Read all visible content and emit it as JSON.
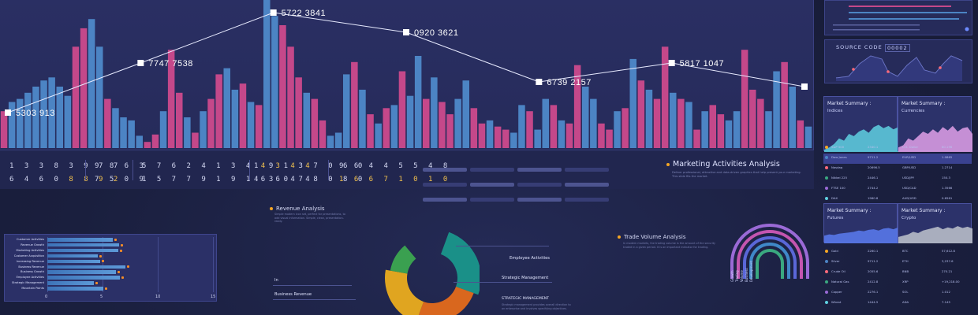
{
  "main_chart": {
    "bar_colors": {
      "blue": "#4c84c4",
      "pink": "#c4488a"
    },
    "bars": [
      {
        "v": 60,
        "c": "pink"
      },
      {
        "v": 75,
        "c": "blue"
      },
      {
        "v": 80,
        "c": "blue"
      },
      {
        "v": 90,
        "c": "blue"
      },
      {
        "v": 100,
        "c": "blue"
      },
      {
        "v": 110,
        "c": "blue"
      },
      {
        "v": 115,
        "c": "blue"
      },
      {
        "v": 100,
        "c": "blue"
      },
      {
        "v": 85,
        "c": "blue"
      },
      {
        "v": 165,
        "c": "pink"
      },
      {
        "v": 195,
        "c": "pink"
      },
      {
        "v": 210,
        "c": "blue"
      },
      {
        "v": 165,
        "c": "blue"
      },
      {
        "v": 80,
        "c": "pink"
      },
      {
        "v": 65,
        "c": "blue"
      },
      {
        "v": 50,
        "c": "blue"
      },
      {
        "v": 45,
        "c": "blue"
      },
      {
        "v": 20,
        "c": "blue"
      },
      {
        "v": 10,
        "c": "pink"
      },
      {
        "v": 22,
        "c": "pink"
      },
      {
        "v": 60,
        "c": "blue"
      },
      {
        "v": 160,
        "c": "pink"
      },
      {
        "v": 90,
        "c": "pink"
      },
      {
        "v": 50,
        "c": "blue"
      },
      {
        "v": 25,
        "c": "pink"
      },
      {
        "v": 60,
        "c": "blue"
      },
      {
        "v": 80,
        "c": "pink"
      },
      {
        "v": 120,
        "c": "pink"
      },
      {
        "v": 130,
        "c": "blue"
      },
      {
        "v": 95,
        "c": "blue"
      },
      {
        "v": 105,
        "c": "pink"
      },
      {
        "v": 75,
        "c": "blue"
      },
      {
        "v": 70,
        "c": "pink"
      },
      {
        "v": 245,
        "c": "blue"
      },
      {
        "v": 215,
        "c": "blue"
      },
      {
        "v": 200,
        "c": "pink"
      },
      {
        "v": 165,
        "c": "pink"
      },
      {
        "v": 115,
        "c": "pink"
      },
      {
        "v": 90,
        "c": "blue"
      },
      {
        "v": 80,
        "c": "pink"
      },
      {
        "v": 45,
        "c": "pink"
      },
      {
        "v": 20,
        "c": "blue"
      },
      {
        "v": 25,
        "c": "blue"
      },
      {
        "v": 120,
        "c": "blue"
      },
      {
        "v": 140,
        "c": "pink"
      },
      {
        "v": 95,
        "c": "blue"
      },
      {
        "v": 55,
        "c": "pink"
      },
      {
        "v": 40,
        "c": "blue"
      },
      {
        "v": 65,
        "c": "pink"
      },
      {
        "v": 70,
        "c": "blue"
      },
      {
        "v": 125,
        "c": "pink"
      },
      {
        "v": 85,
        "c": "blue"
      },
      {
        "v": 150,
        "c": "blue"
      },
      {
        "v": 80,
        "c": "pink"
      },
      {
        "v": 115,
        "c": "blue"
      },
      {
        "v": 75,
        "c": "pink"
      },
      {
        "v": 55,
        "c": "pink"
      },
      {
        "v": 80,
        "c": "blue"
      },
      {
        "v": 110,
        "c": "blue"
      },
      {
        "v": 65,
        "c": "pink"
      },
      {
        "v": 40,
        "c": "pink"
      },
      {
        "v": 45,
        "c": "blue"
      },
      {
        "v": 35,
        "c": "pink"
      },
      {
        "v": 30,
        "c": "pink"
      },
      {
        "v": 25,
        "c": "blue"
      },
      {
        "v": 70,
        "c": "blue"
      },
      {
        "v": 60,
        "c": "pink"
      },
      {
        "v": 30,
        "c": "blue"
      },
      {
        "v": 80,
        "c": "blue"
      },
      {
        "v": 70,
        "c": "pink"
      },
      {
        "v": 45,
        "c": "blue"
      },
      {
        "v": 40,
        "c": "pink"
      },
      {
        "v": 135,
        "c": "pink"
      },
      {
        "v": 100,
        "c": "blue"
      },
      {
        "v": 80,
        "c": "blue"
      },
      {
        "v": 40,
        "c": "pink"
      },
      {
        "v": 30,
        "c": "pink"
      },
      {
        "v": 60,
        "c": "blue"
      },
      {
        "v": 65,
        "c": "pink"
      },
      {
        "v": 145,
        "c": "blue"
      },
      {
        "v": 110,
        "c": "pink"
      },
      {
        "v": 95,
        "c": "blue"
      },
      {
        "v": 80,
        "c": "pink"
      },
      {
        "v": 165,
        "c": "pink"
      },
      {
        "v": 90,
        "c": "blue"
      },
      {
        "v": 80,
        "c": "pink"
      },
      {
        "v": 75,
        "c": "blue"
      },
      {
        "v": 30,
        "c": "pink"
      },
      {
        "v": 60,
        "c": "blue"
      },
      {
        "v": 70,
        "c": "pink"
      },
      {
        "v": 55,
        "c": "pink"
      },
      {
        "v": 45,
        "c": "blue"
      },
      {
        "v": 60,
        "c": "blue"
      },
      {
        "v": 160,
        "c": "pink"
      },
      {
        "v": 95,
        "c": "pink"
      },
      {
        "v": 80,
        "c": "pink"
      },
      {
        "v": 60,
        "c": "blue"
      },
      {
        "v": 125,
        "c": "blue"
      },
      {
        "v": 140,
        "c": "pink"
      },
      {
        "v": 100,
        "c": "blue"
      },
      {
        "v": 45,
        "c": "pink"
      },
      {
        "v": 35,
        "c": "blue"
      }
    ],
    "points": [
      {
        "label": "5303 913",
        "v": 45
      },
      {
        "label": "7747 7538",
        "v": 108
      },
      {
        "label": "5722 3841",
        "v": 172
      },
      {
        "label": "0920 3621",
        "v": 147
      },
      {
        "label": "6739 2157",
        "v": 84
      },
      {
        "label": "5817 1047",
        "v": 108
      },
      {
        "label": "",
        "v": 78
      }
    ]
  },
  "tickers": [
    {
      "a": "1 3 3 8 3 9 7 7",
      "b": "6 4 6 0 ",
      "b_hl": "8 8 9 2"
    },
    {
      "a": "9 8 6 3",
      "b": "7 5 0 9",
      "b_hl": ""
    },
    {
      "a": "5 7 6 2 4 1 3 4 ",
      "a_hl": "4 3 4 4",
      "b": "1 5 7 7 9 1 9 1 6 6 4 4"
    },
    {
      "a": "1 9 1 3 7 0 6 0",
      "b": "4 3 0 7 8 0 8 0"
    },
    {
      "a": "9 6 4 4 5 5 4 8",
      "b": "1 6 6 7 1 0 1 0"
    }
  ],
  "marketing": {
    "title": "Marketing Activities Analysis",
    "desc": "Deliver professional, attractive and data-driven graphics that help present your marketing. This slide fits the market."
  },
  "right": {
    "source_label": "SOURCE CODE",
    "source_code": "00002",
    "cards": [
      {
        "title": "Market Summary :",
        "sub": "Indices",
        "color": "#5fd0e0"
      },
      {
        "title": "Market Summary :",
        "sub": "Currencies",
        "color": "#e0a0e8"
      },
      {
        "title": "Market Summary :",
        "sub": "Futures",
        "color": "#5a7bf0"
      },
      {
        "title": "Market Summary :",
        "sub": "Crypto",
        "color": "#c0c4cc"
      }
    ],
    "rows_top": [
      {
        "l1": "S&P 500",
        "v1": "2340.1",
        "l2": "U.S. Dollar",
        "v2": "80.196"
      },
      {
        "l1": "Dow Jones",
        "v1": "9711.2",
        "l2": "EUR/USD",
        "v2": "1.0865"
      },
      {
        "l1": "Nasdaq",
        "v1": "20696.5",
        "l2": "GBP/USD",
        "v2": "1.2714"
      },
      {
        "l1": "Nikkei 225",
        "v1": "2446.1",
        "l2": "USD/JPY",
        "v2": "150.3"
      },
      {
        "l1": "FTSE 100",
        "v1": "2744.2",
        "l2": "USD/CAD",
        "v2": "1.3566"
      },
      {
        "l1": "DAX",
        "v1": "1960.8",
        "l2": "AUD/USD",
        "v2": "0.6561"
      }
    ],
    "rows_bottom": [
      {
        "l1": "Gold",
        "v1": "2260.1",
        "l2": "BTC",
        "v2": "57,612.8"
      },
      {
        "l1": "Silver",
        "v1": "9711.2",
        "l2": "ETH",
        "v2": "3,237.6"
      },
      {
        "l1": "Crude Oil",
        "v1": "2055.6",
        "l2": "BNB",
        "v2": "270.21"
      },
      {
        "l1": "Natural Gas",
        "v1": "2412.8",
        "l2": "XRP",
        "v2": "+19,218.00"
      },
      {
        "l1": "Copper",
        "v1": "2276.1",
        "l2": "SOL",
        "v2": "1.012"
      },
      {
        "l1": "Wheat",
        "v1": "1444.5",
        "l2": "ADA",
        "v2": "7.145"
      }
    ]
  },
  "hbar": {
    "rows": [
      {
        "label": "Customer Activities",
        "value": 5.9
      },
      {
        "label": "Revenue Growth",
        "value": 6.5
      },
      {
        "label": "Marketing Activities",
        "value": 6.4
      },
      {
        "label": "Customer Acquisition",
        "value": 4.6
      },
      {
        "label": "Increasing Revenue",
        "value": 4.8
      },
      {
        "label": "Business Revenue",
        "value": 7.1
      },
      {
        "label": "Business Growth",
        "value": 6.2
      },
      {
        "label": "Employee Activities",
        "value": 6.6
      },
      {
        "label": "Strategic Management",
        "value": 4.2
      },
      {
        "label": "Mountain Points",
        "value": 5.1
      }
    ],
    "ticks": [
      "0",
      "5",
      "10",
      "15"
    ],
    "max": 15
  },
  "revenue": {
    "title": "Revenue Analysis",
    "desc": "Simple modern icon set, perfect for presentations, to add visual information. Simple, clean, presentation-ready.",
    "in_label": "In",
    "business_label": "Business Revenue"
  },
  "donut": {
    "segments": [
      {
        "label": "Employee Activities",
        "value": 30,
        "color": "#1a9088"
      },
      {
        "label": "Strategic Management",
        "value": 20,
        "color": "#d9671e"
      },
      {
        "label": "",
        "value": 30,
        "color": "#e0a520"
      },
      {
        "label": "",
        "value": 10,
        "color": "#3aa050"
      }
    ],
    "callout_strategic_caps": "STRATEGIC MANAGEMENT",
    "callout_desc": "Strategic management provides overall direction to an enterprise and involves specifying objectives."
  },
  "trade": {
    "title": "Trade Volume Analysis",
    "desc": "In modern markets, the trading volume is the amount of the security traded in a given period. It is an important indicator for trading.",
    "arc_colors": [
      "#9a6ad6",
      "#c455b0",
      "#5a67d8",
      "#3f88c8",
      "#3aa880"
    ],
    "arc_labels": [
      "Growth",
      "Trading",
      "Volume",
      "Business",
      "Development"
    ]
  }
}
